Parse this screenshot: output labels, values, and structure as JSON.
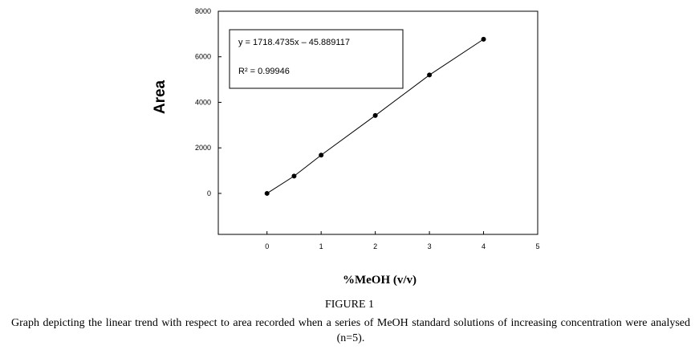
{
  "chart_data": {
    "type": "scatter",
    "title": "",
    "xlabel": "%MeOH (v/v)",
    "ylabel": "Area",
    "xlim": [
      -0.9,
      5
    ],
    "ylim": [
      -1800,
      8000
    ],
    "xticks": [
      0,
      1,
      2,
      3,
      4,
      5
    ],
    "yticks": [
      0,
      2000,
      4000,
      6000,
      8000
    ],
    "grid": false,
    "series": [
      {
        "x": [
          0,
          0.5,
          1,
          2,
          3,
          4
        ],
        "y": [
          0,
          760,
          1680,
          3420,
          5200,
          6770
        ]
      }
    ],
    "trendline": {
      "x": [
        0,
        0.5,
        1,
        2,
        3,
        4
      ],
      "y": [
        0,
        760,
        1680,
        3420,
        5200,
        6770
      ]
    },
    "annotation": {
      "equation": "y = 1718.4735x – 45.889117",
      "r_squared": "R² = 0.99946"
    }
  },
  "figure": {
    "label": "FIGURE 1",
    "caption": "Graph depicting the linear trend with respect to area recorded when a series of MeOH standard solutions of increasing concentration were analysed (n=5)."
  }
}
